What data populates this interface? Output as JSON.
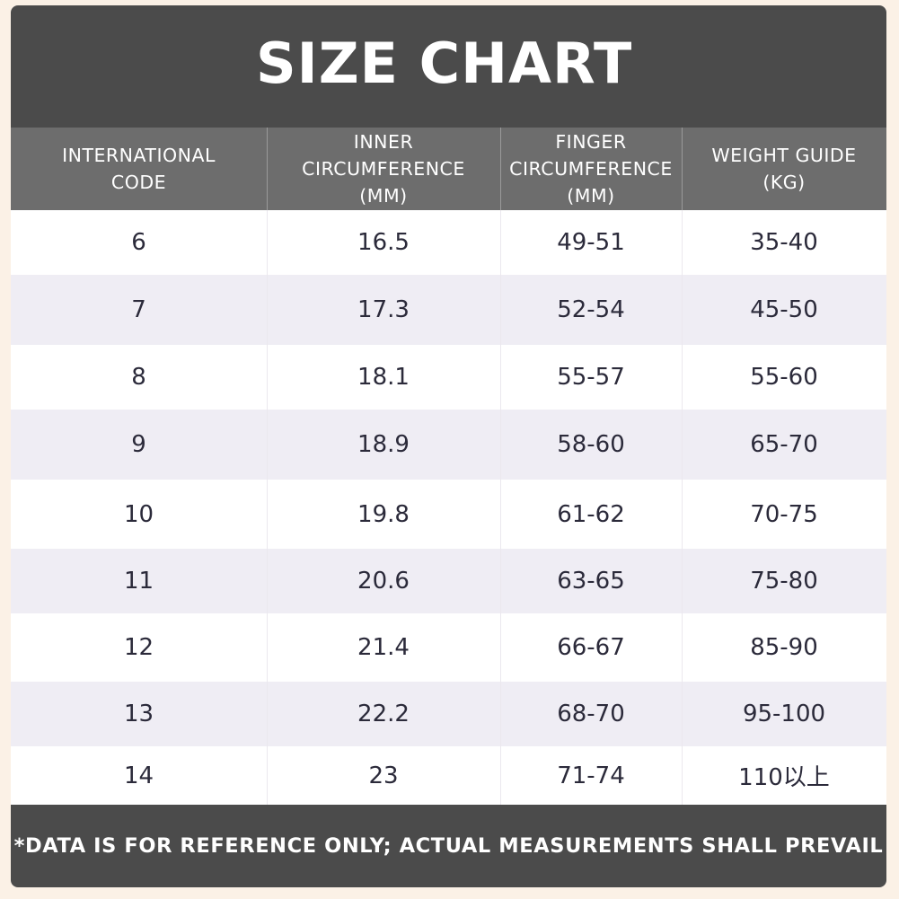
{
  "title": "SIZE CHART",
  "headers": [
    "INTERNATIONAL\nCODE",
    "INNER\nCIRCUMFERENCE\n(MM)",
    "FINGER\nCIRCUMFERENCE\n(MM)",
    "WEIGHT GUIDE\n(KG)"
  ],
  "rows": [
    {
      "code": "6",
      "inner": "16.5",
      "finger": "49-51",
      "weight": "35-40"
    },
    {
      "code": "7",
      "inner": "17.3",
      "finger": "52-54",
      "weight": "45-50"
    },
    {
      "code": "8",
      "inner": "18.1",
      "finger": "55-57",
      "weight": "55-60"
    },
    {
      "code": "9",
      "inner": "18.9",
      "finger": "58-60",
      "weight": "65-70"
    },
    {
      "code": "10",
      "inner": "19.8",
      "finger": "61-62",
      "weight": "70-75"
    },
    {
      "code": "11",
      "inner": "20.6",
      "finger": "63-65",
      "weight": "75-80"
    },
    {
      "code": "12",
      "inner": "21.4",
      "finger": "66-67",
      "weight": "85-90"
    },
    {
      "code": "13",
      "inner": "22.2",
      "finger": "68-70",
      "weight": "95-100"
    },
    {
      "code": "14",
      "inner": "23",
      "finger": "71-74",
      "weight": "110以上"
    }
  ],
  "footer": "*DATA IS FOR REFERENCE ONLY; ACTUAL MEASUREMENTS SHALL PREVAIL"
}
